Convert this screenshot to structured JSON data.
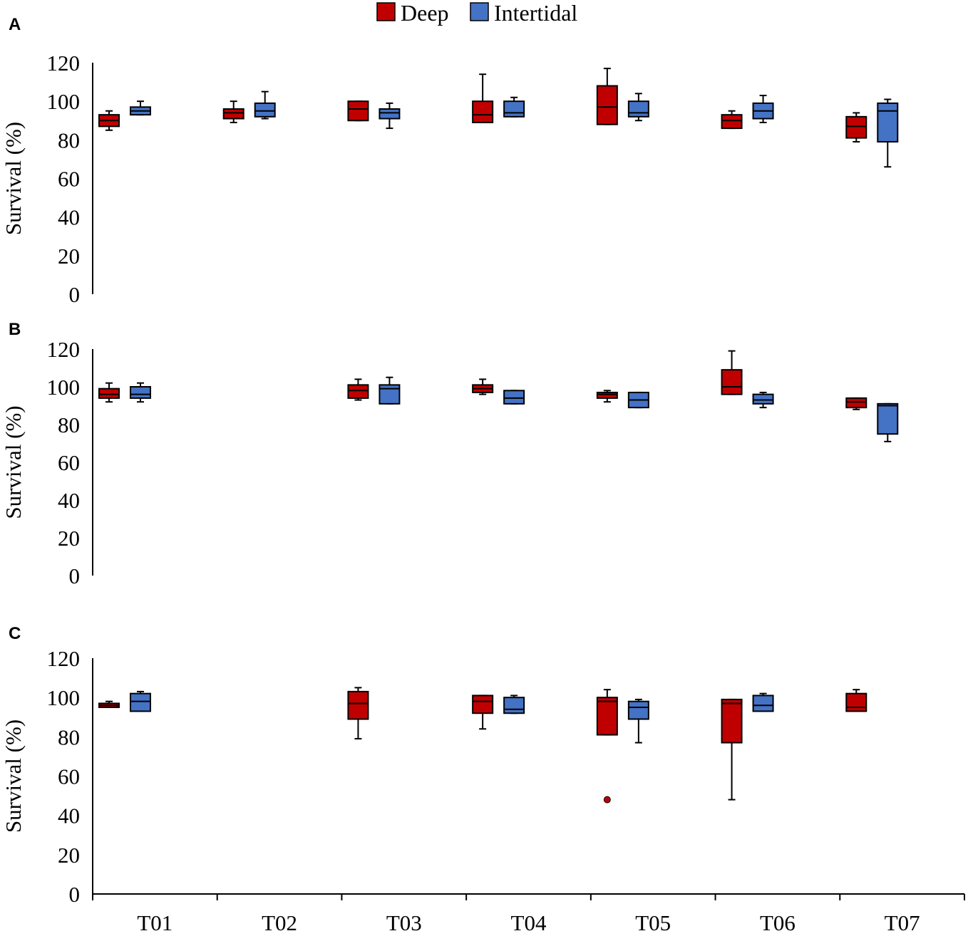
{
  "colors": {
    "deep": "#c00000",
    "intertidal": "#4472c4",
    "axis": "#000000"
  },
  "legend": [
    {
      "key": "deep",
      "label": "Deep",
      "color": "#c00000"
    },
    {
      "key": "intertidal",
      "label": "Intertidal",
      "color": "#4472c4"
    }
  ],
  "chart_data": {
    "type": "boxplot",
    "categories": [
      "T01",
      "T02",
      "T03",
      "T04",
      "T05",
      "T06",
      "T07"
    ],
    "series_names": [
      "Deep",
      "Intertidal"
    ],
    "ylim": [
      0,
      120
    ],
    "yticks": [
      0,
      20,
      40,
      60,
      80,
      100,
      120
    ],
    "ylabel": "Survival (%)",
    "panels": [
      {
        "label": "A",
        "boxes": [
          {
            "cat": "T01",
            "series": "Deep",
            "min": 85,
            "q1": 87,
            "median": 90,
            "q3": 93,
            "max": 95
          },
          {
            "cat": "T01",
            "series": "Intertidal",
            "min": 93,
            "q1": 93,
            "median": 95,
            "q3": 97,
            "max": 100
          },
          {
            "cat": "T02",
            "series": "Deep",
            "min": 89,
            "q1": 91,
            "median": 94,
            "q3": 96,
            "max": 100
          },
          {
            "cat": "T02",
            "series": "Intertidal",
            "min": 91,
            "q1": 92,
            "median": 95,
            "q3": 99,
            "max": 105
          },
          {
            "cat": "T03",
            "series": "Deep",
            "min": 90,
            "q1": 90,
            "median": 96,
            "q3": 100,
            "max": 100
          },
          {
            "cat": "T03",
            "series": "Intertidal",
            "min": 86,
            "q1": 91,
            "median": 94,
            "q3": 96,
            "max": 99
          },
          {
            "cat": "T04",
            "series": "Deep",
            "min": 89,
            "q1": 89,
            "median": 93,
            "q3": 100,
            "max": 114
          },
          {
            "cat": "T04",
            "series": "Intertidal",
            "min": 92,
            "q1": 92,
            "median": 94,
            "q3": 100,
            "max": 102
          },
          {
            "cat": "T05",
            "series": "Deep",
            "min": 88,
            "q1": 88,
            "median": 97,
            "q3": 108,
            "max": 117
          },
          {
            "cat": "T05",
            "series": "Intertidal",
            "min": 90,
            "q1": 92,
            "median": 94,
            "q3": 100,
            "max": 104
          },
          {
            "cat": "T06",
            "series": "Deep",
            "min": 86,
            "q1": 86,
            "median": 90,
            "q3": 93,
            "max": 95
          },
          {
            "cat": "T06",
            "series": "Intertidal",
            "min": 89,
            "q1": 91,
            "median": 95,
            "q3": 99,
            "max": 103
          },
          {
            "cat": "T07",
            "series": "Deep",
            "min": 79,
            "q1": 81,
            "median": 87,
            "q3": 92,
            "max": 94
          },
          {
            "cat": "T07",
            "series": "Intertidal",
            "min": 66,
            "q1": 79,
            "median": 95,
            "q3": 99,
            "max": 101
          }
        ]
      },
      {
        "label": "B",
        "boxes": [
          {
            "cat": "T01",
            "series": "Deep",
            "min": 92,
            "q1": 94,
            "median": 96,
            "q3": 99,
            "max": 102
          },
          {
            "cat": "T01",
            "series": "Intertidal",
            "min": 92,
            "q1": 94,
            "median": 96,
            "q3": 100,
            "max": 102
          },
          {
            "cat": "T03",
            "series": "Deep",
            "min": 93,
            "q1": 94,
            "median": 98,
            "q3": 101,
            "max": 104
          },
          {
            "cat": "T03",
            "series": "Intertidal",
            "min": 91,
            "q1": 91,
            "median": 99,
            "q3": 101,
            "max": 105
          },
          {
            "cat": "T04",
            "series": "Deep",
            "min": 96,
            "q1": 97,
            "median": 99,
            "q3": 101,
            "max": 104
          },
          {
            "cat": "T04",
            "series": "Intertidal",
            "min": 91,
            "q1": 91,
            "median": 94,
            "q3": 98,
            "max": 98
          },
          {
            "cat": "T05",
            "series": "Deep",
            "min": 92,
            "q1": 94,
            "median": 96,
            "q3": 97,
            "max": 98
          },
          {
            "cat": "T05",
            "series": "Intertidal",
            "min": 89,
            "q1": 89,
            "median": 93,
            "q3": 97,
            "max": 97
          },
          {
            "cat": "T06",
            "series": "Deep",
            "min": 96,
            "q1": 96,
            "median": 100,
            "q3": 109,
            "max": 119
          },
          {
            "cat": "T06",
            "series": "Intertidal",
            "min": 89,
            "q1": 91,
            "median": 93,
            "q3": 96,
            "max": 97
          },
          {
            "cat": "T07",
            "series": "Deep",
            "min": 88,
            "q1": 89,
            "median": 92,
            "q3": 94,
            "max": 94
          },
          {
            "cat": "T07",
            "series": "Intertidal",
            "min": 71,
            "q1": 75,
            "median": 90,
            "q3": 91,
            "max": 91
          }
        ]
      },
      {
        "label": "C",
        "boxes": [
          {
            "cat": "T01",
            "series": "Deep",
            "min": 95,
            "q1": 95,
            "median": 96,
            "q3": 97,
            "max": 98
          },
          {
            "cat": "T01",
            "series": "Intertidal",
            "min": 93,
            "q1": 93,
            "median": 98,
            "q3": 102,
            "max": 103
          },
          {
            "cat": "T03",
            "series": "Deep",
            "min": 79,
            "q1": 89,
            "median": 97,
            "q3": 103,
            "max": 105
          },
          {
            "cat": "T04",
            "series": "Deep",
            "min": 84,
            "q1": 92,
            "median": 98,
            "q3": 101,
            "max": 101
          },
          {
            "cat": "T04",
            "series": "Intertidal",
            "min": 92,
            "q1": 92,
            "median": 94,
            "q3": 100,
            "max": 101
          },
          {
            "cat": "T05",
            "series": "Deep",
            "min": 81,
            "q1": 81,
            "median": 98,
            "q3": 100,
            "max": 104,
            "outliers": [
              48
            ]
          },
          {
            "cat": "T05",
            "series": "Intertidal",
            "min": 77,
            "q1": 89,
            "median": 95,
            "q3": 98,
            "max": 99
          },
          {
            "cat": "T06",
            "series": "Deep",
            "min": 48,
            "q1": 77,
            "median": 97,
            "q3": 99,
            "max": 99
          },
          {
            "cat": "T06",
            "series": "Intertidal",
            "min": 93,
            "q1": 93,
            "median": 96,
            "q3": 101,
            "max": 102
          },
          {
            "cat": "T07",
            "series": "Deep",
            "min": 93,
            "q1": 93,
            "median": 95,
            "q3": 102,
            "max": 104
          }
        ]
      }
    ]
  }
}
